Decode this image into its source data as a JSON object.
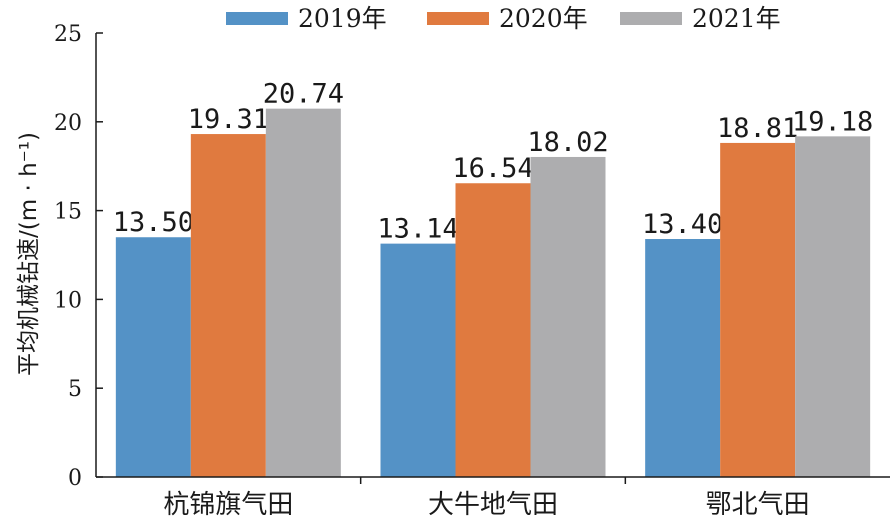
{
  "chart_data": {
    "type": "bar",
    "categories": [
      "杭锦旗气田",
      "大牛地气田",
      "鄂北气田"
    ],
    "series": [
      {
        "name": "2019年",
        "values": [
          13.5,
          13.14,
          13.4
        ],
        "labels": [
          "13.50",
          "13.14",
          "13.40"
        ],
        "color": "#5492C6"
      },
      {
        "name": "2020年",
        "values": [
          19.31,
          16.54,
          18.81
        ],
        "labels": [
          "19.31",
          "16.54",
          "18.81"
        ],
        "color": "#E07A3F"
      },
      {
        "name": "2021年",
        "values": [
          20.74,
          18.02,
          19.18
        ],
        "labels": [
          "20.74",
          "18.02",
          "19.18"
        ],
        "color": "#ADADAF"
      }
    ],
    "ylabel": "平均机械钻速/(m · h⁻¹)",
    "xlabel": "",
    "ylim": [
      0,
      25
    ],
    "yticks": [
      0,
      5,
      10,
      15,
      20,
      25
    ],
    "legend_position": "top",
    "grid": false
  }
}
